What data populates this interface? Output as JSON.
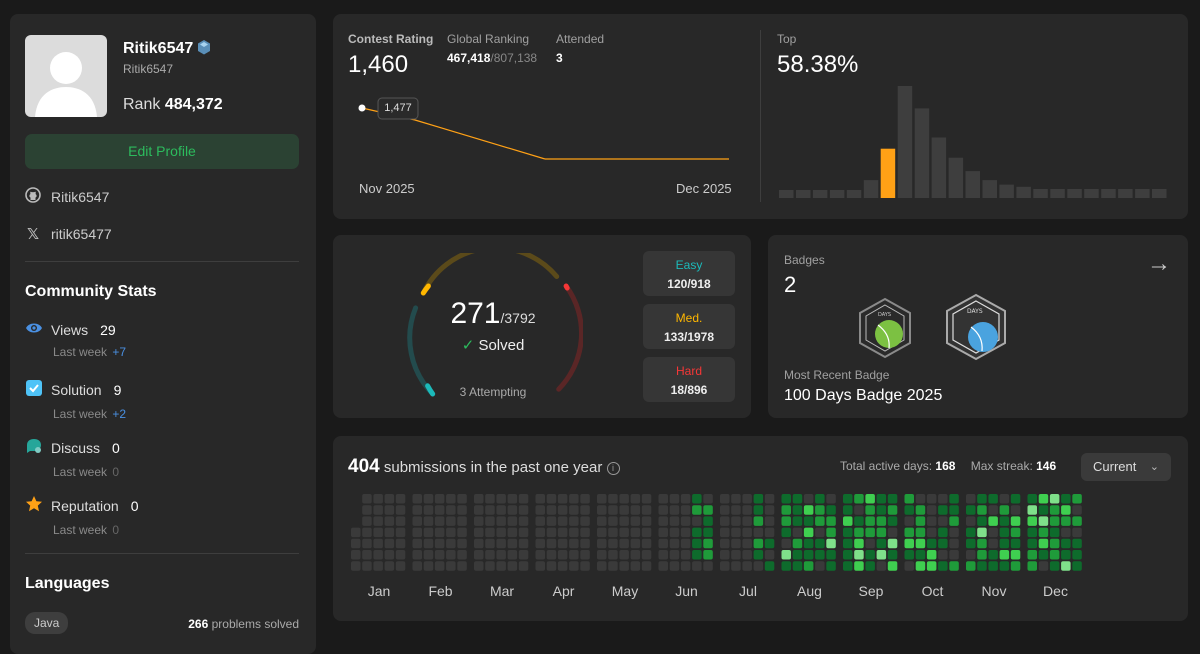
{
  "profile": {
    "username": "Ritik6547",
    "handle": "Ritik6547",
    "rank_label": "Rank",
    "rank_value": "484,372",
    "edit_label": "Edit Profile",
    "github": "Ritik6547",
    "x": "ritik65477"
  },
  "community": {
    "title": "Community Stats",
    "stats": [
      {
        "label": "Views",
        "value": "29",
        "sub_label": "Last week",
        "delta": "+7"
      },
      {
        "label": "Solution",
        "value": "9",
        "sub_label": "Last week",
        "delta": "+2"
      },
      {
        "label": "Discuss",
        "value": "0",
        "sub_label": "Last week",
        "delta": "0"
      },
      {
        "label": "Reputation",
        "value": "0",
        "sub_label": "Last week",
        "delta": "0"
      }
    ]
  },
  "languages": {
    "title": "Languages",
    "items": [
      {
        "name": "Java",
        "count": "266",
        "suffix": "problems solved"
      }
    ]
  },
  "contest": {
    "rating_label": "Contest Rating",
    "rating": "1,460",
    "global_label": "Global Ranking",
    "global_rank": "467,418",
    "global_total": "/807,138",
    "attended_label": "Attended",
    "attended": "3",
    "tooltip": "1,477",
    "x_start": "Nov 2025",
    "x_end": "Dec 2025",
    "top_label": "Top",
    "top_value": "58.38%",
    "histogram": [
      1,
      1,
      1,
      2,
      3,
      8,
      22,
      50,
      40,
      27,
      18,
      12,
      8,
      6,
      5,
      4,
      4,
      4,
      4,
      4,
      4,
      4,
      4
    ],
    "highlight_index": 6,
    "line": [
      1477,
      1477,
      1460,
      1460
    ]
  },
  "solved": {
    "count": "271",
    "total": "/3792",
    "label": "Solved",
    "attempting": "3 Attempting",
    "easy_label": "Easy",
    "easy": "120/918",
    "med_label": "Med.",
    "med": "133/1978",
    "hard_label": "Hard",
    "hard": "18/896",
    "colors": {
      "easy": "#1cbaba",
      "med": "#ffb700",
      "hard": "#f63737"
    }
  },
  "badges": {
    "label": "Badges",
    "count": "2",
    "recent_label": "Most Recent Badge",
    "recent": "100 Days Badge 2025"
  },
  "heatmap": {
    "count": "404",
    "title": "submissions in the past one year",
    "active_label": "Total active days:",
    "active": "168",
    "streak_label": "Max streak:",
    "streak": "146",
    "range": "Current",
    "months": [
      "Jan",
      "Feb",
      "Mar",
      "Apr",
      "May",
      "Jun",
      "Jul",
      "Aug",
      "Sep",
      "Oct",
      "Nov",
      "Dec"
    ]
  }
}
